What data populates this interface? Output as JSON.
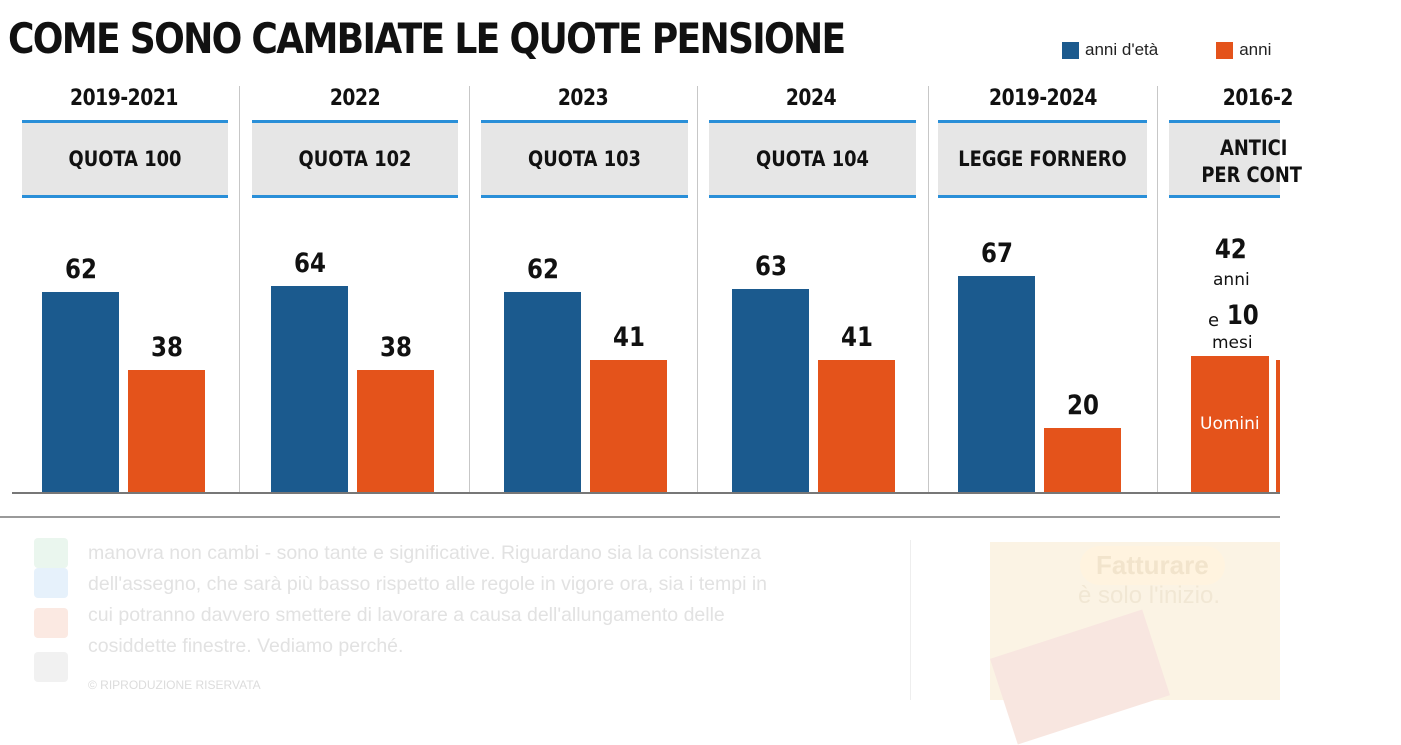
{
  "chart_data": {
    "type": "bar",
    "title": "COME SONO CAMBIATE LE QUOTE PENSIONE",
    "legend": {
      "placement": "top-right",
      "entries": [
        "anni d'età",
        "anni"
      ]
    },
    "colors": {
      "eta": "#1b5a8e",
      "anni": "#e4531b"
    },
    "groups": [
      {
        "period": "2019-2021",
        "label": "QUOTA 100",
        "values": [
          62,
          38
        ]
      },
      {
        "period": "2022",
        "label": "QUOTA 102",
        "values": [
          64,
          38
        ]
      },
      {
        "period": "2023",
        "label": "QUOTA 103",
        "values": [
          62,
          41
        ]
      },
      {
        "period": "2024",
        "label": "QUOTA 104",
        "values": [
          63,
          41
        ]
      },
      {
        "period": "2019-2024",
        "label": "LEGGE FORNERO",
        "values": [
          67,
          20
        ]
      },
      {
        "period": "2016-2",
        "label": [
          "ANTICI",
          "PER CONT"
        ],
        "values": []
      }
    ],
    "annotation": {
      "years": "42",
      "years_unit": "anni",
      "and": "e",
      "months": "10",
      "months_unit": "mesi",
      "bar_label": "Uomini"
    },
    "ylim": [
      0,
      100
    ]
  },
  "background_text": {
    "paragraph": [
      "manovra non cambi - sono tante e significative. Riguardano sia la consistenza",
      "dell'assegno, che sarà più basso rispetto alle regole in vigore ora, sia i tempi in",
      "cui potranno davvero smettere di lavorare a causa dell'allungamento delle",
      "cosiddette finestre. Vediamo perché."
    ],
    "copyright": "© RIPRODUZIONE RISERVATA",
    "promo_title": "Fatturare",
    "promo_subtitle": "è solo l'inizio."
  }
}
